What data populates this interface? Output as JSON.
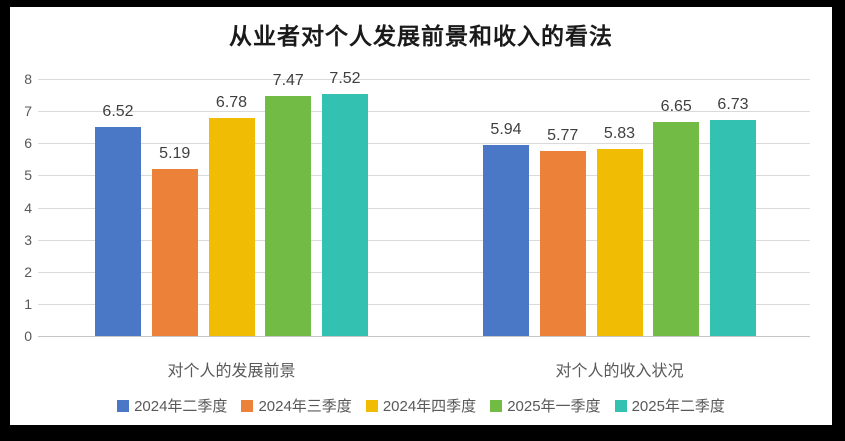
{
  "frame": {
    "border_color": "#000000",
    "background": "#ffffff"
  },
  "chart_data": {
    "type": "bar",
    "title": "从业者对个人发展前景和收入的看法",
    "categories": [
      "对个人的发展前景",
      "对个人的收入状况"
    ],
    "series": [
      {
        "name": "2024年二季度",
        "color": "#4a78c7",
        "values": [
          6.52,
          5.94
        ],
        "labels": [
          "6.52",
          "5.94"
        ]
      },
      {
        "name": "2024年三季度",
        "color": "#ec8139",
        "values": [
          5.19,
          5.77
        ],
        "labels": [
          "5.19",
          "5.77"
        ]
      },
      {
        "name": "2024年四季度",
        "color": "#f0bd04",
        "values": [
          6.78,
          5.83
        ],
        "labels": [
          "6.78",
          "5.83"
        ]
      },
      {
        "name": "2025年一季度",
        "color": "#72bb44",
        "values": [
          7.47,
          6.65
        ],
        "labels": [
          "7.47",
          "6.65"
        ]
      },
      {
        "name": "2025年二季度",
        "color": "#33c1b2",
        "values": [
          7.52,
          6.73
        ],
        "labels": [
          "7.52",
          "6.73"
        ]
      }
    ],
    "y_axis": {
      "min": 0,
      "max": 8,
      "step": 1,
      "tick_labels": [
        "0",
        "1",
        "2",
        "3",
        "4",
        "5",
        "6",
        "7",
        "8"
      ]
    },
    "grid": true,
    "value_labels": true,
    "legend_position": "bottom",
    "xlabel": "",
    "ylabel": ""
  }
}
